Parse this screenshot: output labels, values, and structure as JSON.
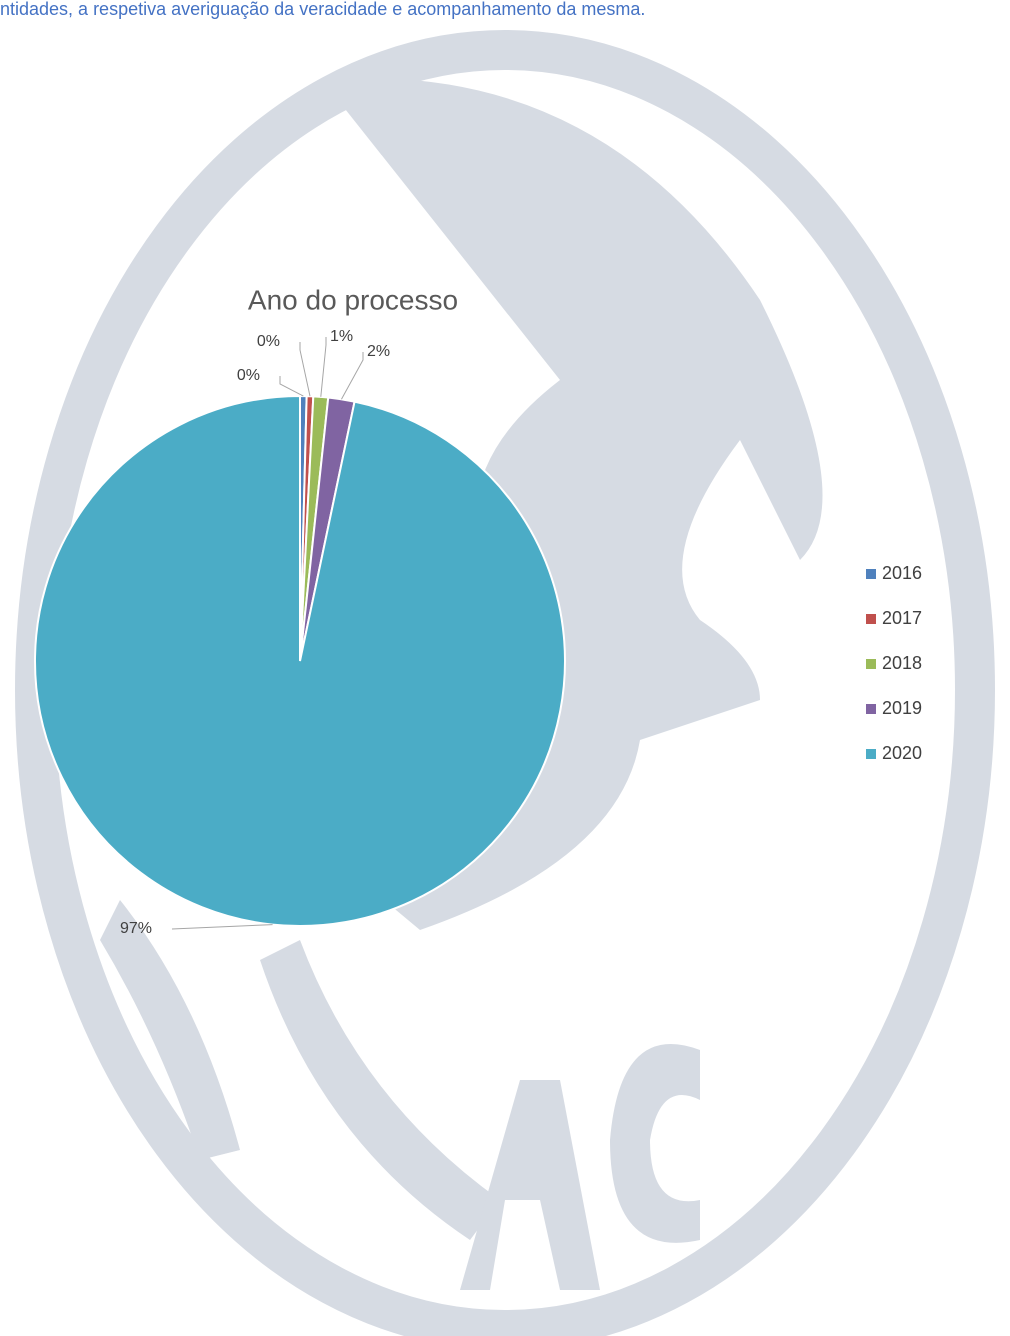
{
  "intro_text": "ntidades, a respetiva averiguação da veracidade e acompanhamento da mesma.",
  "chart_data": {
    "type": "pie",
    "title": "Ano do processo",
    "categories": [
      "2016",
      "2017",
      "2018",
      "2019",
      "2020"
    ],
    "values": [
      0.4,
      0.4,
      0.9,
      1.6,
      96.7
    ],
    "value_labels": [
      "0%",
      "0%",
      "1%",
      "2%",
      "97%"
    ],
    "colors": [
      "#4f81bd",
      "#c0504d",
      "#9bbb59",
      "#8064a2",
      "#4bacc6"
    ],
    "legend": "right"
  }
}
